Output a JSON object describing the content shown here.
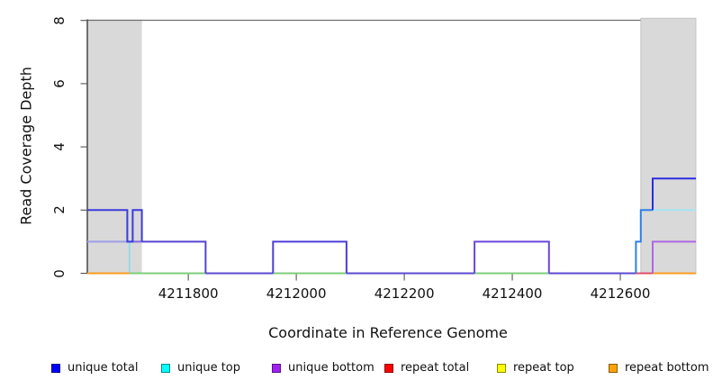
{
  "chart_data": {
    "type": "line",
    "subtype": "step-coverage",
    "title": "",
    "xlabel": "Coordinate in Reference Genome",
    "ylabel": "Read Coverage Depth",
    "xlim": [
      4211613,
      4212740
    ],
    "ylim": [
      0,
      8
    ],
    "grid": false,
    "x_ticks": [
      4211800,
      4212000,
      4212200,
      4212400,
      4212600
    ],
    "x_tick_labels": [
      "4211800",
      "4212000",
      "4212200",
      "4212400",
      "4212600"
    ],
    "y_ticks": [
      0,
      2,
      4,
      6,
      8
    ],
    "y_tick_labels": [
      "0",
      "2",
      "4",
      "6",
      "8"
    ],
    "shade_color": "#d9d9d9",
    "shaded_regions": [
      {
        "x1": 4211613,
        "x2": 4211714
      },
      {
        "x1": 4212638,
        "x2": 4212740
      }
    ],
    "legend": {
      "position": "bottom",
      "entries": [
        {
          "label": "unique total",
          "color": "#0000ff"
        },
        {
          "label": "unique top",
          "color": "#00ffff"
        },
        {
          "label": "unique bottom",
          "color": "#a020f0"
        },
        {
          "label": "repeat total",
          "color": "#ff0000"
        },
        {
          "label": "repeat top",
          "color": "#ffff00"
        },
        {
          "label": "repeat bottom",
          "color": "#ffa500"
        }
      ]
    },
    "series": [
      {
        "name": "unique total",
        "color": "#0000ff",
        "breaks": [
          4211613,
          4211687,
          4211697,
          4211714,
          4211832,
          4211957,
          4212093,
          4212330,
          4212468,
          4212629,
          4212638,
          4212660,
          4212740
        ],
        "depths": [
          2,
          1,
          2,
          1,
          0,
          1,
          0,
          1,
          0,
          1,
          2,
          3
        ]
      },
      {
        "name": "unique top",
        "color": "#00ffff",
        "breaks": [
          4211613,
          4211691,
          4212629,
          4212638,
          4212740
        ],
        "depths": [
          1,
          0,
          1,
          2
        ]
      },
      {
        "name": "unique bottom",
        "color": "#a020f0",
        "breaks": [
          4211613,
          4211832,
          4211957,
          4212093,
          4212330,
          4212468,
          4212660,
          4212740
        ],
        "depths": [
          1,
          0,
          1,
          0,
          1,
          0,
          1
        ]
      },
      {
        "name": "repeat total",
        "color": "#ff0000",
        "breaks": [
          4211613,
          4212740
        ],
        "depths": [
          0
        ]
      },
      {
        "name": "repeat top",
        "color": "#ffff00",
        "breaks": [
          4211613,
          4212740
        ],
        "depths": [
          0
        ]
      },
      {
        "name": "repeat bottom",
        "color": "#ffa500",
        "breaks": [
          4211613,
          4212740
        ],
        "depths": [
          0
        ]
      }
    ],
    "render_segments": [
      {
        "color": "#9d9de8",
        "pts": [
          [
            4211613,
            1
          ],
          [
            4211687,
            1
          ]
        ]
      },
      {
        "color": "#7d6ae0",
        "pts": [
          [
            4211687,
            1
          ],
          [
            4211714,
            1
          ]
        ]
      },
      {
        "color": "#8fdce6",
        "pts": [
          [
            4211691,
            1
          ],
          [
            4211691,
            0
          ]
        ]
      },
      {
        "color": "#7ccf7e",
        "pts": [
          [
            4211691,
            0
          ],
          [
            4211832,
            0
          ]
        ]
      },
      {
        "color": "#7ccf7e",
        "pts": [
          [
            4211957,
            0
          ],
          [
            4212093,
            0
          ]
        ]
      },
      {
        "color": "#7ccf7e",
        "pts": [
          [
            4212330,
            0
          ],
          [
            4212468,
            0
          ]
        ]
      },
      {
        "color": "#5b49d0",
        "pts": [
          [
            4211832,
            0
          ],
          [
            4211957,
            0
          ]
        ]
      },
      {
        "color": "#5b49d0",
        "pts": [
          [
            4212093,
            0
          ],
          [
            4212330,
            0
          ]
        ]
      },
      {
        "color": "#5b49d0",
        "pts": [
          [
            4212468,
            0
          ],
          [
            4212629,
            0
          ]
        ]
      },
      {
        "color": "#4e3cd9",
        "pts": [
          [
            4211957,
            0
          ],
          [
            4211957,
            1
          ],
          [
            4212093,
            1
          ],
          [
            4212093,
            0
          ]
        ]
      },
      {
        "color": "#6a46dc",
        "pts": [
          [
            4212330,
            0
          ],
          [
            4212330,
            1
          ],
          [
            4212468,
            1
          ],
          [
            4212468,
            0
          ]
        ]
      },
      {
        "color": "#5544cf",
        "pts": [
          [
            4211714,
            1
          ],
          [
            4211832,
            1
          ],
          [
            4211832,
            0
          ]
        ]
      },
      {
        "color": "#3c3cdd",
        "pts": [
          [
            4211613,
            2
          ],
          [
            4211687,
            2
          ],
          [
            4211687,
            1
          ],
          [
            4211697,
            1
          ],
          [
            4211697,
            2
          ],
          [
            4211714,
            2
          ],
          [
            4211714,
            1
          ]
        ]
      },
      {
        "color": "#ff9d1e",
        "pts": [
          [
            4211613,
            0
          ],
          [
            4211691,
            0
          ]
        ]
      },
      {
        "color": "#e0506a",
        "pts": [
          [
            4212629,
            0
          ],
          [
            4212660,
            0
          ]
        ]
      },
      {
        "color": "#ff9d1e",
        "pts": [
          [
            4212660,
            0
          ],
          [
            4212740,
            0
          ]
        ]
      },
      {
        "color": "#2e7fe8",
        "pts": [
          [
            4212629,
            0
          ],
          [
            4212629,
            1
          ],
          [
            4212638,
            1
          ],
          [
            4212638,
            2
          ],
          [
            4212660,
            2
          ]
        ]
      },
      {
        "color": "#a5e5ef",
        "pts": [
          [
            4212660,
            2
          ],
          [
            4212740,
            2
          ]
        ]
      },
      {
        "color": "#2c2cdf",
        "pts": [
          [
            4212660,
            2
          ],
          [
            4212660,
            3
          ],
          [
            4212740,
            3
          ]
        ]
      },
      {
        "color": "#ae67e3",
        "pts": [
          [
            4212660,
            0
          ],
          [
            4212660,
            1
          ],
          [
            4212740,
            1
          ]
        ]
      }
    ],
    "frame": {
      "top_line_color": "#6f6f6f",
      "axis_color": "#3a3a42",
      "tick_color": "#555555"
    }
  }
}
